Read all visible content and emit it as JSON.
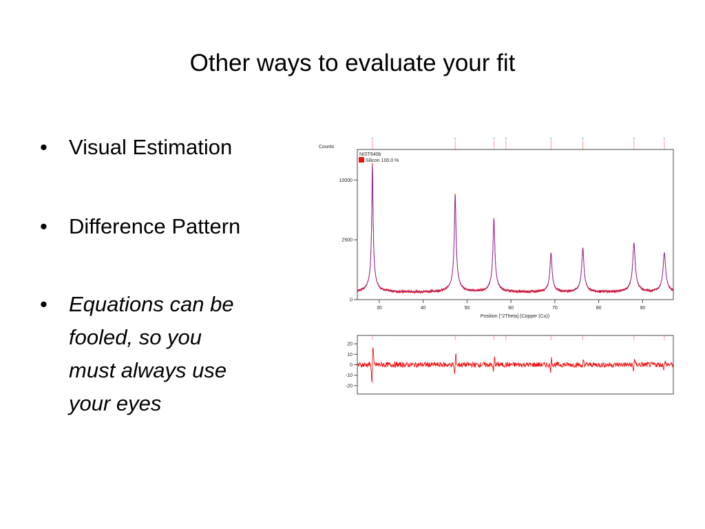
{
  "slide": {
    "title": "Other ways to evaluate your fit",
    "bullets": [
      {
        "text": "Visual Estimation",
        "italic": false
      },
      {
        "text": "Difference Pattern",
        "italic": false
      },
      {
        "text": "Equations can be fooled, so you must always use your eyes",
        "italic": true
      }
    ],
    "bullet_lines": [
      "Equations can be",
      "fooled, so you",
      "must always use",
      "your eyes"
    ]
  },
  "chart_data": [
    {
      "type": "line",
      "ylabel": "Counts",
      "xlabel": "Position [°2Theta] (Copper (Cu))",
      "sample_label": "NIST640b",
      "legend": [
        {
          "name": "Silicon 100.0 %",
          "color": "#ee1111"
        }
      ],
      "y_ticks": [
        0,
        2500,
        10000
      ],
      "y_scale": "sqrt",
      "x_ticks": [
        30,
        40,
        50,
        60,
        70,
        80,
        90
      ],
      "xlim": [
        25,
        97
      ],
      "ylim": [
        0,
        13000
      ],
      "peaks": [
        {
          "x": 28.44,
          "height": 13000
        },
        {
          "x": 47.3,
          "height": 7800
        },
        {
          "x": 56.12,
          "height": 4600
        },
        {
          "x": 69.13,
          "height": 1500
        },
        {
          "x": 76.38,
          "height": 1820
        },
        {
          "x": 88.03,
          "height": 2200
        },
        {
          "x": 94.95,
          "height": 1500
        }
      ],
      "reference_marks": [
        28.44,
        47.3,
        56.12,
        58.86,
        69.13,
        76.38,
        88.03,
        94.95
      ],
      "background": 40,
      "colors": {
        "observed": "#ee1111",
        "calculated": "#7a2bb8",
        "marker": "#ff9a9a"
      }
    },
    {
      "type": "line",
      "title": "",
      "y_ticks": [
        20,
        10,
        0,
        -10,
        -20
      ],
      "ylim": [
        -28,
        28
      ],
      "xlim": [
        25,
        97
      ],
      "difference_features": [
        {
          "x": 28.44,
          "amp": 25
        },
        {
          "x": 47.3,
          "amp": 14
        },
        {
          "x": 56.12,
          "amp": 10
        },
        {
          "x": 69.13,
          "amp": 8
        },
        {
          "x": 76.38,
          "amp": 6
        },
        {
          "x": 88.03,
          "amp": 9
        },
        {
          "x": 94.95,
          "amp": 5
        }
      ],
      "colors": {
        "line": "#ee1111",
        "marker": "#ff9a9a"
      }
    }
  ]
}
